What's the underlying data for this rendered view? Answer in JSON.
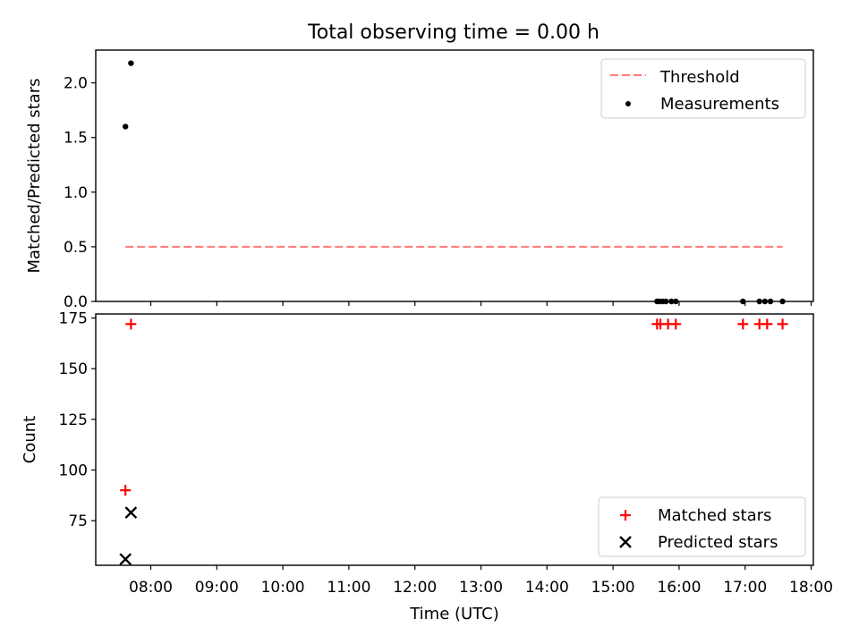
{
  "title": "Total observing time = 0.00 h",
  "colors": {
    "threshold": "#ff8080",
    "matched": "#ff0000",
    "measurement": "#000000",
    "predicted": "#000000"
  },
  "chart_data": [
    {
      "type": "scatter",
      "ylabel": "Matched/Predicted stars",
      "xlabel": "",
      "xlim": [
        "07:10",
        "18:02"
      ],
      "ylim": [
        0,
        2.3
      ],
      "yticks": [
        0.0,
        0.5,
        1.0,
        1.5,
        2.0
      ],
      "ytick_labels": [
        "0.0",
        "0.5",
        "1.0",
        "1.5",
        "2.0"
      ],
      "legend": {
        "placement": "top-right",
        "entries": [
          "Threshold",
          "Measurements"
        ]
      },
      "series": [
        {
          "name": "Threshold",
          "kind": "dashed-line",
          "x": [
            "07:37",
            "17:34"
          ],
          "y": [
            0.5,
            0.5
          ]
        },
        {
          "name": "Measurements",
          "kind": "points",
          "x": [
            "07:37",
            "07:42",
            "15:40",
            "15:42",
            "15:45",
            "15:48",
            "15:53",
            "15:57",
            "16:58",
            "17:13",
            "17:18",
            "17:23",
            "17:34"
          ],
          "y": [
            1.6,
            2.18,
            0,
            0,
            0,
            0,
            0,
            0,
            0,
            0,
            0,
            0,
            0
          ]
        }
      ]
    },
    {
      "type": "scatter",
      "ylabel": "Count",
      "xlabel": "Time (UTC)",
      "xlim": [
        "07:10",
        "18:02"
      ],
      "ylim": [
        53,
        177
      ],
      "yticks": [
        75,
        100,
        125,
        150,
        175
      ],
      "ytick_labels": [
        "75",
        "100",
        "125",
        "150",
        "175"
      ],
      "xticks": [
        "08:00",
        "09:00",
        "10:00",
        "11:00",
        "12:00",
        "13:00",
        "14:00",
        "15:00",
        "16:00",
        "17:00",
        "18:00"
      ],
      "legend": {
        "placement": "bottom-right",
        "entries": [
          "Matched stars",
          "Predicted stars"
        ]
      },
      "series": [
        {
          "name": "Matched stars",
          "marker": "plus",
          "x": [
            "07:37",
            "07:42",
            "15:40",
            "15:43",
            "15:50",
            "15:57",
            "16:58",
            "17:13",
            "17:20",
            "17:34"
          ],
          "y": [
            90,
            172,
            172,
            172,
            172,
            172,
            172,
            172,
            172,
            172
          ]
        },
        {
          "name": "Predicted stars",
          "marker": "x",
          "x": [
            "07:37",
            "07:42"
          ],
          "y": [
            56,
            79
          ]
        }
      ]
    }
  ]
}
